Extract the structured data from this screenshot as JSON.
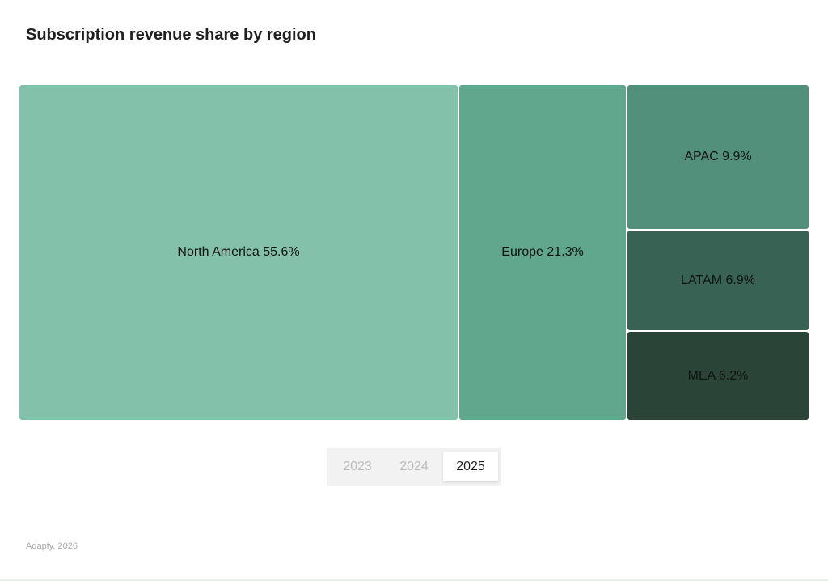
{
  "chart_data": {
    "type": "treemap",
    "title": "Subscription revenue share by region",
    "items": [
      {
        "label": "North America 55.6%",
        "region": "North America",
        "value": 55.6,
        "color": "#84c1ab"
      },
      {
        "label": "Europe 21.3%",
        "region": "Europe",
        "value": 21.3,
        "color": "#61a78e"
      },
      {
        "label": "APAC 9.9%",
        "region": "APAC",
        "value": 9.9,
        "color": "#52907b"
      },
      {
        "label": "LATAM 6.9%",
        "region": "LATAM",
        "value": 6.9,
        "color": "#386253"
      },
      {
        "label": "MEA 6.2%",
        "region": "MEA",
        "value": 6.2,
        "color": "#2a4538"
      }
    ]
  },
  "year_tabs": [
    {
      "label": "2023",
      "active": false
    },
    {
      "label": "2024",
      "active": false
    },
    {
      "label": "2025",
      "active": true
    }
  ],
  "footer": "Adapty, 2026"
}
